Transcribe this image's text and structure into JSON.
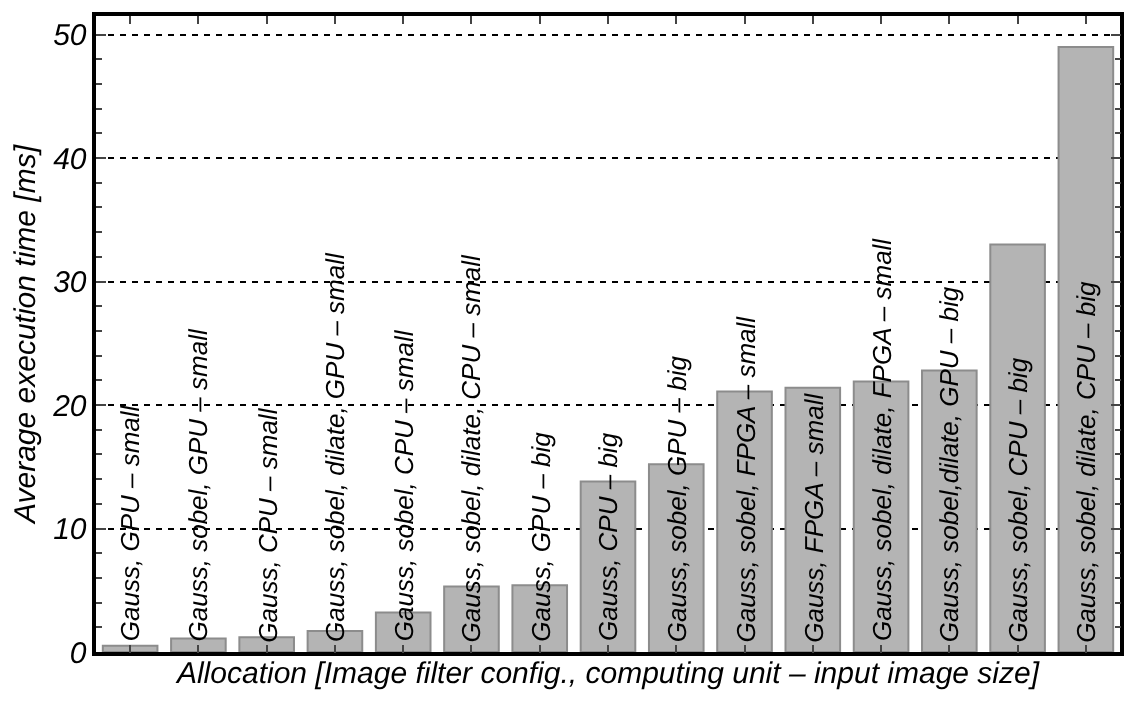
{
  "chart_data": {
    "type": "bar",
    "categories": [
      "Gauss, GPU – small",
      "Gauss, sobel, GPU – small",
      "Gauss, CPU – small",
      "Gauss, sobel, dilate, GPU – small",
      "Gauss, sobel, CPU – small",
      "Gauss, sobel, dilate, CPU – small",
      "Gauss, GPU – big",
      "Gauss, CPU – big",
      "Gauss, sobel, GPU – big",
      "Gauss, sobel, FPGA – small",
      "Gauss, FPGA – small",
      "Gauss, sobel, dilate, FPGA – small",
      "Gauss, sobel,dilate, GPU – big",
      "Gauss, sobel, CPU – big",
      "Gauss, sobel, dilate, CPU – big"
    ],
    "values": [
      0.5,
      1.1,
      1.2,
      1.7,
      3.2,
      5.3,
      5.4,
      13.8,
      15.2,
      21.1,
      21.4,
      21.9,
      22.8,
      33.0,
      49.0
    ],
    "color": "#b4b4b4",
    "xlabel": "Allocation [Image filter config., computing unit – input image size]",
    "ylabel": "Average execution time [ms]",
    "ylim": [
      0,
      51.5
    ],
    "yticks": [
      0,
      10,
      20,
      30,
      40,
      50
    ],
    "grid": "y",
    "tick_labels": "y"
  }
}
